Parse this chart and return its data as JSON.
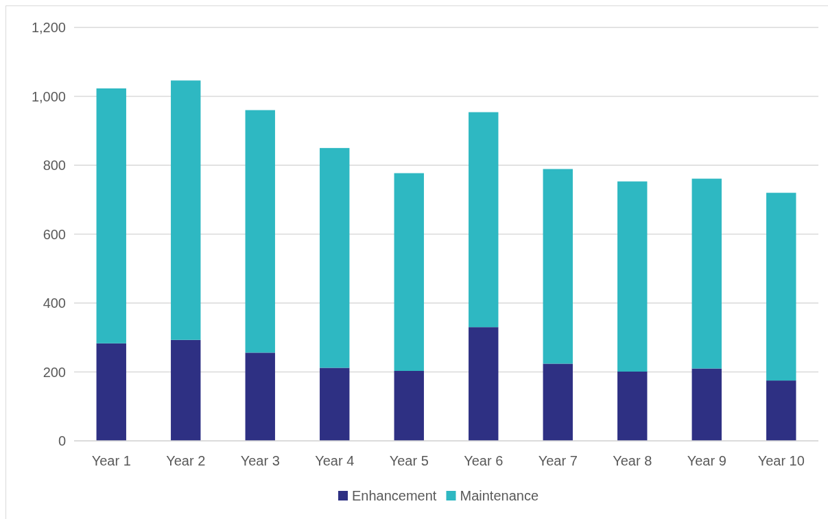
{
  "chart_data": {
    "type": "bar",
    "stacked": true,
    "categories": [
      "Year 1",
      "Year 2",
      "Year 3",
      "Year 4",
      "Year 5",
      "Year 6",
      "Year 7",
      "Year 8",
      "Year 9",
      "Year 10"
    ],
    "series": [
      {
        "name": "Enhancement",
        "color": "#2e3083",
        "values": [
          283,
          293,
          256,
          212,
          203,
          330,
          224,
          201,
          210,
          175
        ]
      },
      {
        "name": "Maintenance",
        "color": "#2eb8c2",
        "values": [
          740,
          753,
          704,
          638,
          574,
          624,
          565,
          552,
          551,
          545
        ]
      }
    ],
    "ylim": [
      0,
      1200
    ],
    "yticks": [
      0,
      200,
      400,
      600,
      800,
      {
        "value": 1000,
        "label": "1,000"
      },
      {
        "value": 1200,
        "label": "1,200"
      }
    ],
    "grid": "y",
    "legend": "bottom"
  }
}
